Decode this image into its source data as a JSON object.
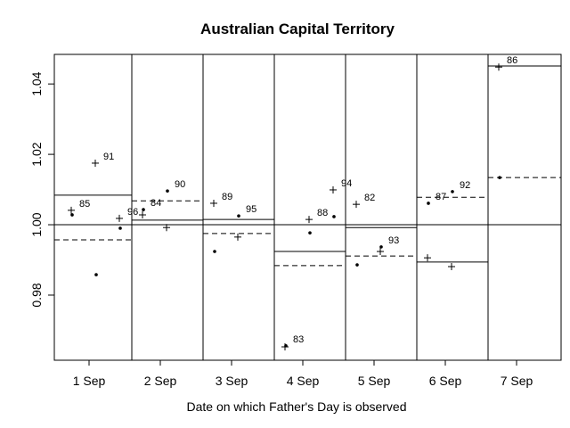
{
  "chart_data": {
    "type": "panel-scatter",
    "title": "Australian Capital Territory",
    "xlabel": "Date on which Father's Day is observed",
    "ylim": [
      0.9615,
      1.0484
    ],
    "yticks": [
      {
        "value": 0.98,
        "label": "0.98"
      },
      {
        "value": 1.0,
        "label": "1.00"
      },
      {
        "value": 1.02,
        "label": "1.02"
      },
      {
        "value": 1.04,
        "label": "1.04"
      }
    ],
    "hline": 1,
    "color": "#000000",
    "panels": [
      {
        "category": "1 Sep",
        "solid": 1.0084,
        "dashed": 0.9957,
        "points": [
          {
            "label": "85",
            "plus": 1.0041,
            "dot": 1.0028
          },
          {
            "label": "91",
            "plus": 1.0175,
            "dot": 0.9858
          },
          {
            "label": "96",
            "plus": 1.0018,
            "dot": 0.999
          }
        ]
      },
      {
        "category": "2 Sep",
        "solid": 1.0013,
        "dashed": 1.0068,
        "points": [
          {
            "label": "84",
            "plus": 1.0028,
            "dot": 1.0043
          },
          {
            "label": "90",
            "plus": 0.9992,
            "dot": 1.0096
          }
        ]
      },
      {
        "category": "3 Sep",
        "solid": 1.0015,
        "dashed": 0.9975,
        "points": [
          {
            "label": "89",
            "plus": 1.0061,
            "dot": 0.9924
          },
          {
            "label": "95",
            "plus": 0.9965,
            "dot": 1.0025
          }
        ]
      },
      {
        "category": "4 Sep",
        "solid": 0.9924,
        "dashed": 0.9884,
        "points": [
          {
            "label": "83",
            "plus": 0.9653,
            "dot": 0.9656
          },
          {
            "label": "88",
            "plus": 1.0015,
            "dot": 0.9977
          },
          {
            "label": "94",
            "plus": 1.0099,
            "dot": 1.0023
          }
        ]
      },
      {
        "category": "5 Sep",
        "solid": 0.9992,
        "dashed": 0.9911,
        "points": [
          {
            "label": "82",
            "plus": 1.0058,
            "dot": 0.9886
          },
          {
            "label": "93",
            "plus": 0.9924,
            "dot": 0.9937
          }
        ]
      },
      {
        "category": "6 Sep",
        "solid": 0.9894,
        "dashed": 1.0078,
        "points": [
          {
            "label": "87",
            "plus": 0.9906,
            "dot": 1.0061
          },
          {
            "label": "92",
            "plus": 0.9881,
            "dot": 1.0094
          }
        ]
      },
      {
        "category": "7 Sep",
        "solid": 1.0451,
        "dashed": 1.0134,
        "points": [
          {
            "label": "86",
            "plus": 1.0448,
            "dot": 1.0134
          }
        ]
      }
    ]
  }
}
